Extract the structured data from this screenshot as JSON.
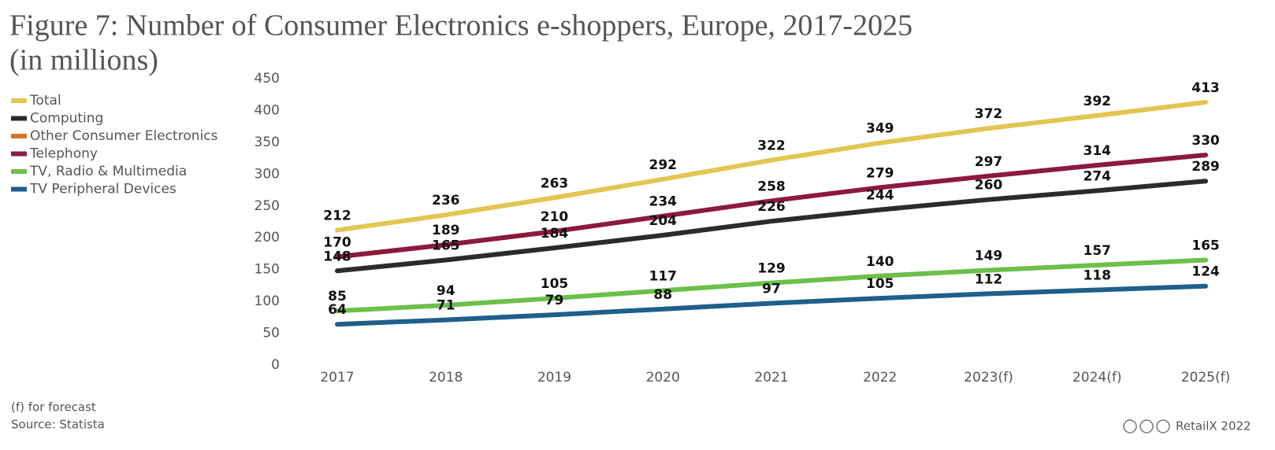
{
  "chart_data": {
    "type": "line",
    "title": "Figure 7: Number of Consumer Electronics e-shoppers, Europe, 2017-2025",
    "subtitle": "(in millions)",
    "categories": [
      "2017",
      "2018",
      "2019",
      "2020",
      "2021",
      "2022",
      "2023(f)",
      "2024(f)",
      "2025(f)"
    ],
    "series": [
      {
        "name": "Total",
        "color": "#e3c651",
        "values": [
          212,
          236,
          263,
          292,
          322,
          349,
          372,
          392,
          413
        ]
      },
      {
        "name": "Computing",
        "color": "#2b2b2b",
        "values": [
          148,
          165,
          184,
          204,
          226,
          244,
          260,
          274,
          289
        ]
      },
      {
        "name": "Other Consumer Electronics",
        "color": "#d9742b",
        "values": [
          null,
          null,
          null,
          null,
          null,
          null,
          null,
          null,
          null
        ]
      },
      {
        "name": "Telephony",
        "color": "#8c1a3c",
        "values": [
          170,
          189,
          210,
          234,
          258,
          279,
          297,
          314,
          330
        ]
      },
      {
        "name": "TV, Radio & Multimedia",
        "color": "#6cc04a",
        "values": [
          85,
          94,
          105,
          117,
          129,
          140,
          149,
          157,
          165
        ]
      },
      {
        "name": "TV Peripheral Devices",
        "color": "#1f5f8b",
        "values": [
          64,
          71,
          79,
          88,
          97,
          105,
          112,
          118,
          124
        ]
      }
    ],
    "ylim": [
      0,
      450
    ],
    "yticks": [
      0,
      50,
      100,
      150,
      200,
      250,
      300,
      350,
      400,
      450
    ],
    "grid": false,
    "legend": "left",
    "notes": [
      "(f) for forecast",
      "Source: Statista"
    ],
    "credit": "RetailX 2022"
  }
}
